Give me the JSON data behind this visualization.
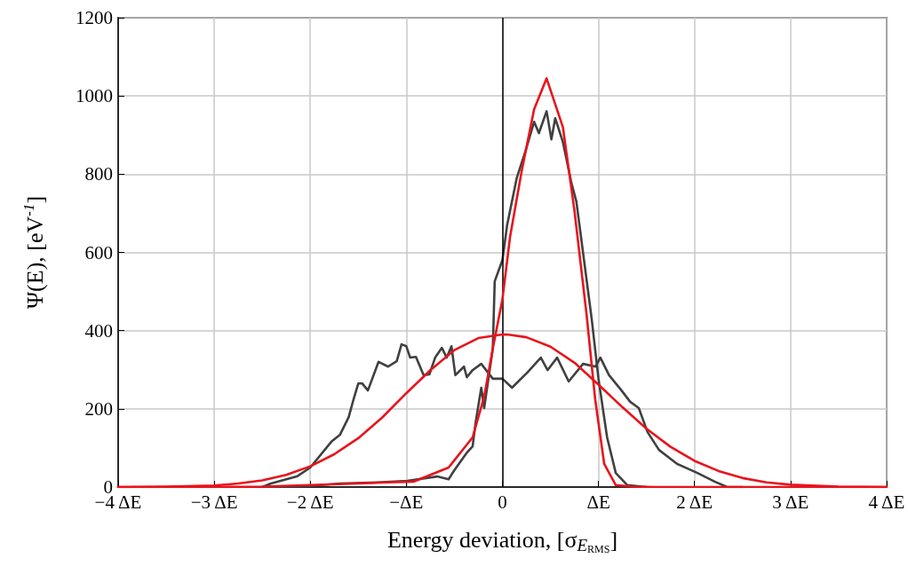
{
  "chart_data": {
    "type": "line",
    "xlabel": "Energy deviation, [σ$_{E}$$_{RMS}$]",
    "ylabel": "Ψ(E), [eV$^{-1}$]",
    "xlim": [
      -4,
      4
    ],
    "ylim": [
      0,
      1200
    ],
    "xticks": [
      {
        "value": -4,
        "label": "−4 ΔE"
      },
      {
        "value": -3,
        "label": "−3 ΔE"
      },
      {
        "value": -2,
        "label": "−2 ΔE"
      },
      {
        "value": -1,
        "label": "−ΔE"
      },
      0,
      {
        "value": 1,
        "label": "ΔE"
      },
      {
        "value": 2,
        "label": "2 ΔE"
      },
      {
        "value": 3,
        "label": "3 ΔE"
      },
      {
        "value": 4,
        "label": "4 ΔE"
      }
    ],
    "yticks": [
      0,
      200,
      400,
      600,
      800,
      1000,
      1200
    ],
    "grid": true,
    "marker": "none",
    "line_style": "solid",
    "ref_lines": [
      {
        "axis": "x",
        "value": 0,
        "color": "#000000"
      }
    ],
    "series": [
      {
        "color": "#404040",
        "x": [
          -2.5,
          -2.41,
          -2.14,
          -2.0,
          -1.78,
          -1.69,
          -1.6,
          -1.55,
          -1.5,
          -1.46,
          -1.4,
          -1.29,
          -1.19,
          -1.1,
          -1.05,
          -1.0,
          -0.96,
          -0.9,
          -0.82,
          -0.76,
          -0.7,
          -0.63,
          -0.58,
          -0.53,
          -0.49,
          -0.4,
          -0.37,
          -0.31,
          -0.22,
          -0.1,
          0.0,
          0.1,
          0.26,
          0.4,
          0.47,
          0.57,
          0.69,
          0.84,
          0.97,
          1.02,
          1.11,
          1.24,
          1.33,
          1.42,
          1.51,
          1.63,
          1.82,
          2.03,
          2.21,
          2.34,
          2.5
        ],
        "values": [
          0,
          9,
          27,
          50,
          116,
          134,
          179,
          224,
          265,
          265,
          247,
          320,
          308,
          322,
          365,
          360,
          331,
          333,
          286,
          288,
          331,
          356,
          331,
          360,
          286,
          308,
          281,
          299,
          315,
          277,
          277,
          254,
          293,
          331,
          299,
          331,
          270,
          315,
          308,
          331,
          286,
          247,
          218,
          202,
          141,
          95,
          59,
          36,
          14,
          0,
          0
        ]
      },
      {
        "color": "#404040",
        "x": [
          -2.5,
          -2.0,
          -1.69,
          -1.3,
          -0.99,
          -0.68,
          -0.56,
          -0.5,
          -0.37,
          -0.31,
          -0.28,
          -0.22,
          -0.19,
          -0.1,
          -0.08,
          0.0,
          0.05,
          0.15,
          0.24,
          0.33,
          0.38,
          0.46,
          0.51,
          0.55,
          0.63,
          0.72,
          0.77,
          0.81,
          0.87,
          0.93,
          1.0,
          1.09,
          1.18,
          1.3,
          1.5
        ],
        "values": [
          0,
          3,
          9,
          12,
          16,
          27,
          20,
          43,
          88,
          104,
          163,
          254,
          202,
          354,
          526,
          580,
          671,
          791,
          859,
          934,
          905,
          961,
          889,
          943,
          882,
          776,
          730,
          655,
          542,
          429,
          277,
          127,
          36,
          5,
          0
        ]
      },
      {
        "color": "#e8141c",
        "x": [
          -4,
          -3.5,
          -3,
          -2.75,
          -2.5,
          -2.25,
          -2,
          -1.75,
          -1.5,
          -1.25,
          -1,
          -0.75,
          -0.5,
          -0.25,
          0,
          0.05,
          0.25,
          0.5,
          0.75,
          1,
          1.25,
          1.5,
          1.75,
          2,
          2.25,
          2.5,
          2.75,
          3,
          3.5,
          4
        ],
        "values": [
          0,
          1,
          4,
          9,
          17,
          31,
          53,
          84,
          125,
          178,
          240,
          299,
          350,
          381,
          390,
          390,
          383,
          359,
          318,
          262,
          204,
          149,
          103,
          67,
          41,
          23,
          12,
          6,
          1,
          0
        ]
      },
      {
        "color": "#e8141c",
        "x": [
          -4,
          -3,
          -2.5,
          -2,
          -1.5,
          -1.2,
          -0.92,
          -0.56,
          -0.31,
          -0.19,
          -0.1,
          0.0,
          0.08,
          0.2,
          0.33,
          0.46,
          0.63,
          0.75,
          0.875,
          0.966,
          1.06,
          1.18,
          1.35,
          1.6,
          2,
          4
        ],
        "values": [
          0,
          0,
          1,
          5,
          9,
          12,
          14,
          50,
          127,
          231,
          354,
          480,
          640,
          807,
          966,
          1045,
          920,
          707,
          444,
          224,
          59,
          5,
          1,
          0,
          0,
          0
        ]
      }
    ]
  }
}
